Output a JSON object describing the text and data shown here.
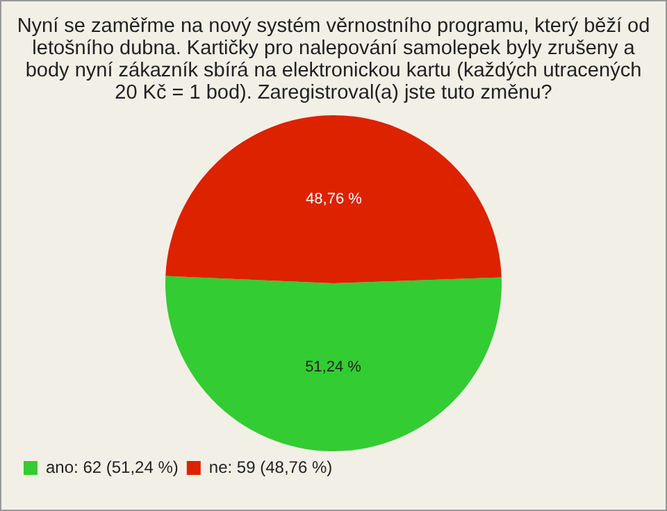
{
  "chart_data": {
    "type": "pie",
    "title": "Nyní se zaměřme na nový systém věrnostního programu, který běží od letošního dubna. Kartičky pro nalepování samolepek byly zrušeny a body nyní zákazník sbírá na elektronickou kartu (každých utracených 20 Kč = 1 bod). Zaregistroval(a) jste tuto změnu?",
    "categories": [
      "ano: 62 (51,24 %)",
      "ne: 59 (48,76 %)"
    ],
    "values": [
      51.24,
      48.76
    ],
    "colors": [
      "#33cc33",
      "#dd2200"
    ],
    "value_labels": [
      "51,24 %",
      "48,76 %"
    ],
    "legend": "bottom left"
  }
}
